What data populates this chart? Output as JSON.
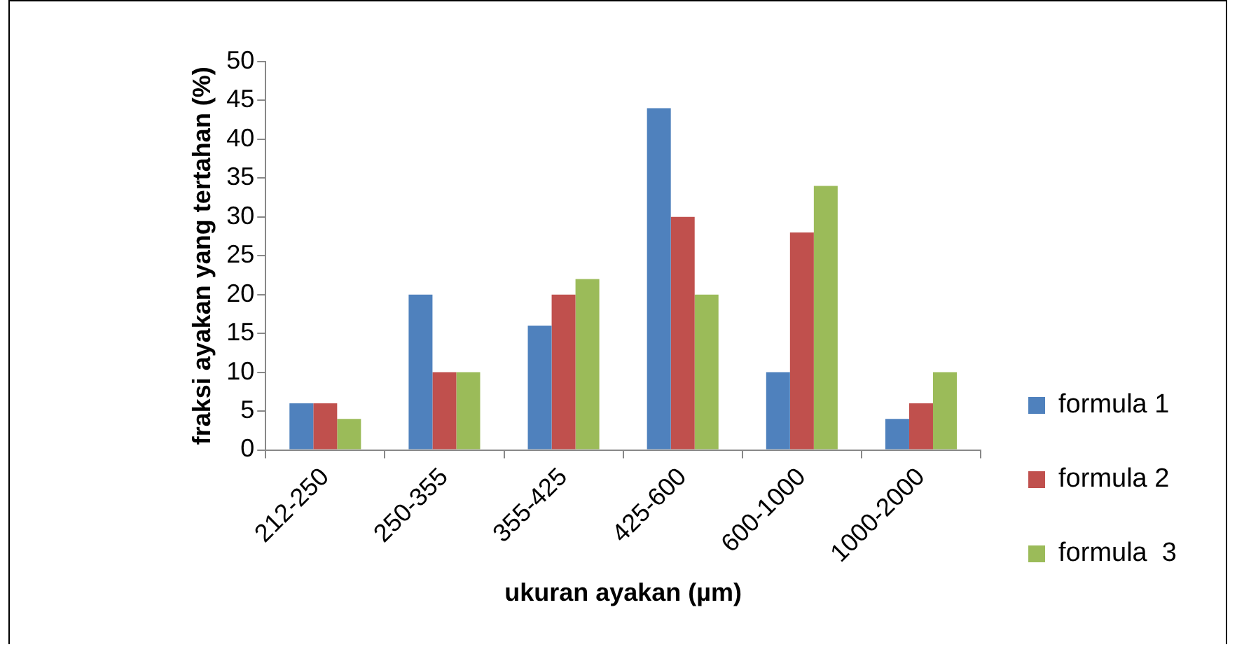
{
  "chart_data": {
    "type": "bar",
    "xlabel": "ukuran ayakan (µm)",
    "ylabel": "fraksi ayakan yang tertahan (%)",
    "categories": [
      "212-250",
      "250-355",
      "355-425",
      "425-600",
      "600-1000",
      "1000-2000"
    ],
    "series": [
      {
        "name": "formula 1",
        "color": "#4f81bd",
        "values": [
          6,
          20,
          16,
          44,
          10,
          4
        ]
      },
      {
        "name": "formula 2",
        "color": "#c0504d",
        "values": [
          6,
          10,
          20,
          30,
          28,
          6
        ]
      },
      {
        "name": "formula  3",
        "color": "#9bbb59",
        "values": [
          4,
          10,
          22,
          20,
          34,
          10
        ]
      }
    ],
    "ylim": [
      0,
      50
    ],
    "yticks": [
      0,
      5,
      10,
      15,
      20,
      25,
      30,
      35,
      40,
      45,
      50
    ],
    "grid": false,
    "legend": "right"
  }
}
